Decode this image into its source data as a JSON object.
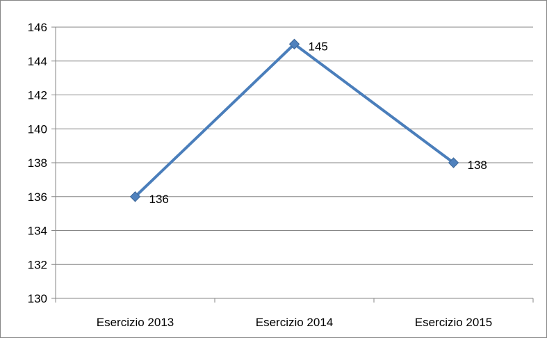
{
  "chart_data": {
    "type": "line",
    "title": "",
    "xlabel": "",
    "ylabel": "",
    "categories": [
      "Esercizio 2013",
      "Esercizio 2014",
      "Esercizio 2015"
    ],
    "series": [
      {
        "values": [
          136,
          145,
          138
        ]
      }
    ],
    "ylim": [
      130,
      146
    ],
    "yticks": [
      130,
      132,
      134,
      136,
      138,
      140,
      142,
      144,
      146
    ],
    "grid": true,
    "legend": "none",
    "marker": "diamond",
    "show_data_labels": true,
    "colors": {
      "series": "#4a7ebb",
      "marker": "#4f81bd",
      "grid": "#868686",
      "axis": "#868686"
    }
  }
}
